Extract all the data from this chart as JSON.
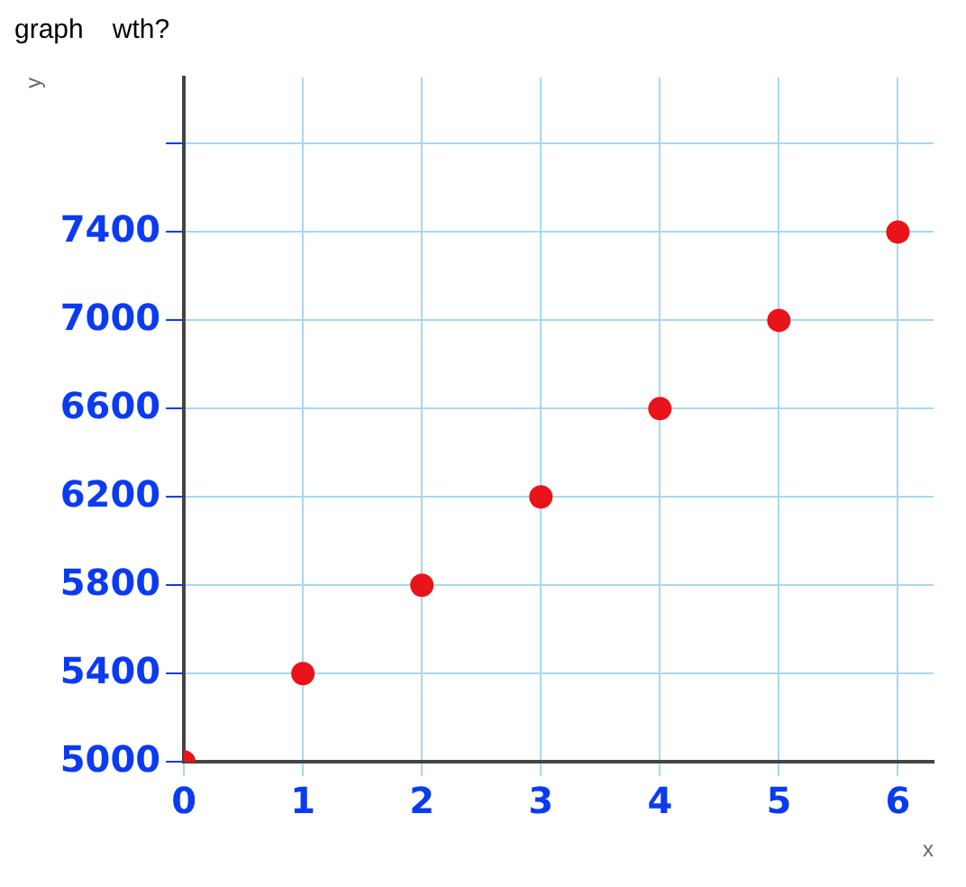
{
  "chart_data": {
    "type": "scatter",
    "xlabel": "x",
    "ylabel": "y",
    "annotations": [
      "graph",
      "wth?"
    ],
    "x": [
      0,
      1,
      2,
      3,
      4,
      5,
      6
    ],
    "series": [
      {
        "color": "#e8141a",
        "values": [
          5000,
          5400,
          5800,
          6200,
          6600,
          7000,
          7400
        ]
      }
    ],
    "xlim": [
      0,
      6.3
    ],
    "xticks": [
      0,
      1,
      2,
      3,
      4,
      5,
      6
    ],
    "ylim": [
      5000,
      8100
    ],
    "yticks": [
      5000,
      5400,
      5800,
      6200,
      6600,
      7000,
      7400,
      {
        "value": 7800,
        "label": null
      }
    ],
    "grid": true,
    "marker": "circle",
    "legend": false
  }
}
